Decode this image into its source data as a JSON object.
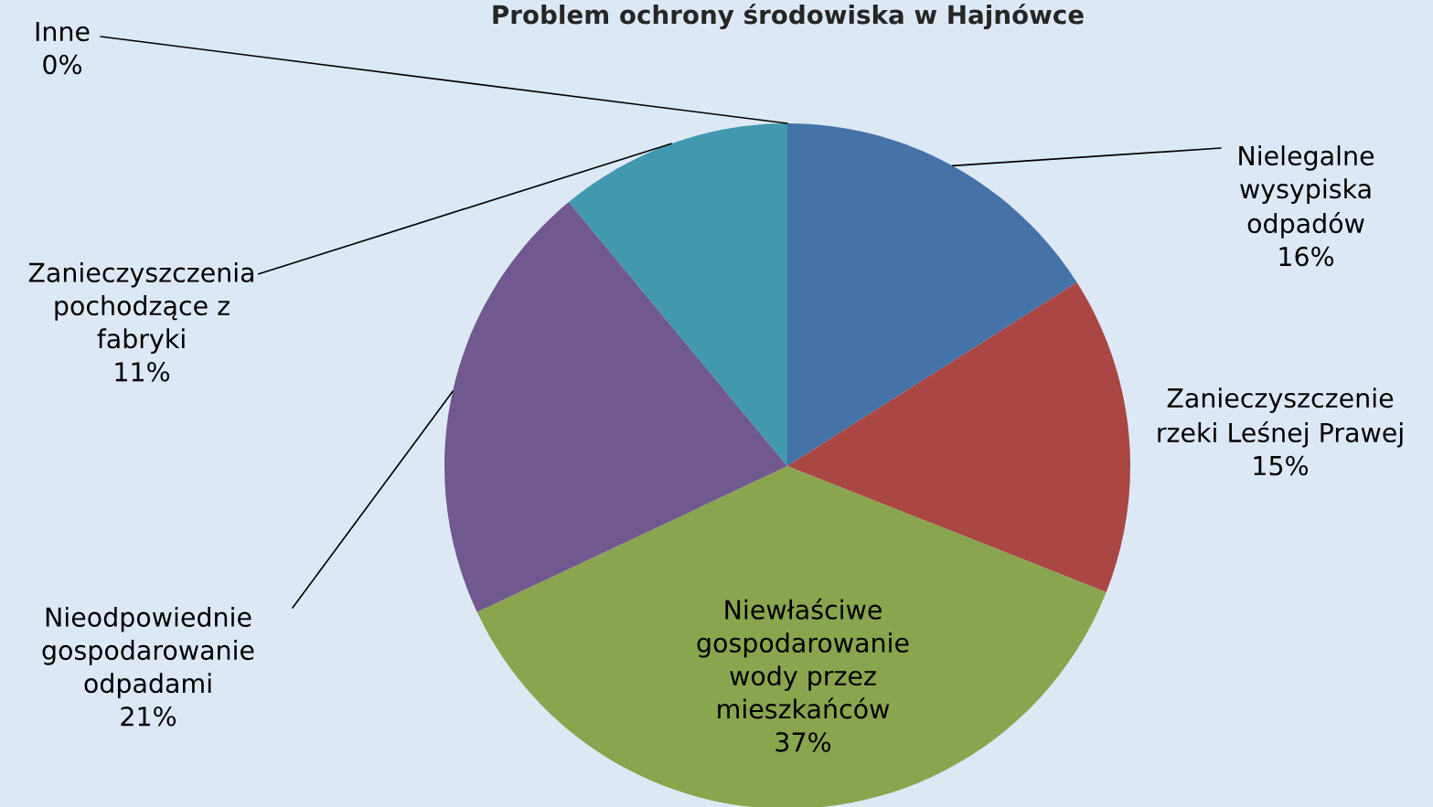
{
  "chart_data": {
    "type": "pie",
    "title": "Problem ochrony środowiska w Hajnówce",
    "categories": [
      "Nielegalne\nwysypiska\nodpadów",
      "Zanieczyszczenie\nrzeki Leśnej Prawej",
      "Niewłaściwe\ngospodarowanie\nwody przez\nmieszkańców",
      "Nieodpowiednie\ngospodarowanie\nodpadami",
      "Zanieczyszczenia\npochodzące z\nfabryki",
      "Inne"
    ],
    "values": [
      16,
      15,
      37,
      21,
      11,
      0
    ],
    "colors": [
      "#4572a7",
      "#aa4643",
      "#89a54e",
      "#71588f",
      "#4198af",
      "#db843d"
    ],
    "value_labels": [
      "16%",
      "15%",
      "37%",
      "21%",
      "11%",
      "0%"
    ]
  }
}
